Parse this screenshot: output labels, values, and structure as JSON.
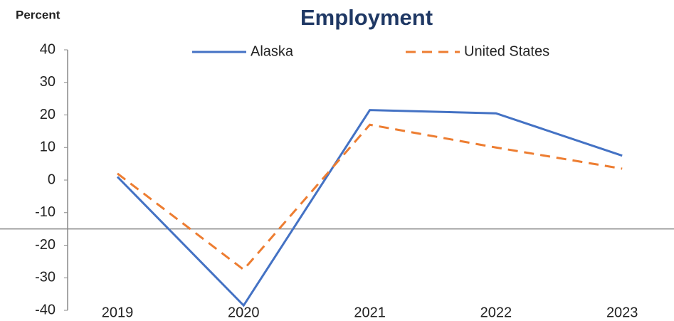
{
  "chart_data": {
    "type": "line",
    "title": "Employment",
    "y_label": "Percent",
    "categories": [
      "2019",
      "2020",
      "2021",
      "2022",
      "2023"
    ],
    "series": [
      {
        "name": "Alaska",
        "color": "#4472c4",
        "dash": false,
        "values": [
          1,
          -38.5,
          21.5,
          20.5,
          7.5
        ]
      },
      {
        "name": "United States",
        "color": "#ed7d31",
        "dash": true,
        "values": [
          2,
          -27.5,
          17,
          10,
          3.5
        ]
      }
    ],
    "ylim": [
      -40,
      40
    ],
    "yticks": [
      -40,
      -30,
      -20,
      -10,
      0,
      10,
      20,
      30,
      40
    ],
    "reference_line": -15,
    "grid": false
  }
}
